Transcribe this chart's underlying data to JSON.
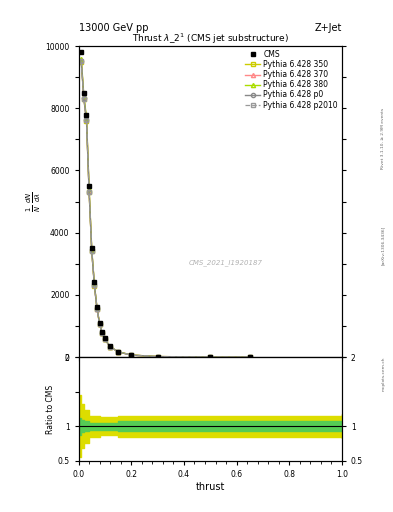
{
  "title": "Thrust $\\lambda\\_2^1$ (CMS jet substructure)",
  "top_left_label": "13000 GeV pp",
  "top_right_label": "Z+Jet",
  "cms_id": "CMS_2021_I1920187",
  "xlabel": "thrust",
  "ylabel": "$\\frac{1}{N}\\frac{dN}{d\\lambda}$",
  "background_color": "#ffffff",
  "main_ylim": [
    0,
    10000
  ],
  "ratio_ylim": [
    0.5,
    2.0
  ],
  "xlim": [
    0.0,
    1.0
  ],
  "cms_color": "#000000",
  "p350_color": "#cccc00",
  "p370_color": "#ff8888",
  "p380_color": "#aadd00",
  "p0_color": "#888888",
  "p2010_color": "#999999",
  "yellow_band_color": "#dddd00",
  "green_band_color": "#55cc55",
  "x_data": [
    0.01,
    0.02,
    0.03,
    0.04,
    0.05,
    0.06,
    0.07,
    0.08,
    0.09,
    0.1,
    0.12,
    0.15,
    0.2,
    0.3,
    0.5,
    0.65
  ],
  "cms_y": [
    9800,
    8500,
    7800,
    5500,
    3500,
    2400,
    1600,
    1100,
    800,
    600,
    350,
    180,
    70,
    18,
    3,
    3
  ],
  "p350_y": [
    9500,
    8300,
    7600,
    5300,
    3400,
    2300,
    1550,
    1050,
    760,
    570,
    330,
    170,
    65,
    17,
    2.8,
    2.8
  ],
  "p370_y": [
    9550,
    8350,
    7650,
    5350,
    3430,
    2320,
    1560,
    1060,
    765,
    575,
    333,
    172,
    66,
    17.2,
    2.85,
    2.85
  ],
  "p380_y": [
    9600,
    8400,
    7700,
    5400,
    3450,
    2340,
    1570,
    1070,
    770,
    580,
    336,
    174,
    67,
    17.5,
    2.9,
    2.9
  ],
  "p0_y": [
    9520,
    8320,
    7620,
    5320,
    3410,
    2310,
    1555,
    1055,
    762,
    572,
    331,
    171,
    65.5,
    17.1,
    2.82,
    2.82
  ],
  "p2010_y": [
    9510,
    8310,
    7610,
    5310,
    3405,
    2305,
    1552,
    1052,
    761,
    571,
    330,
    170.5,
    65.2,
    17.05,
    2.81,
    2.81
  ],
  "ratio_x_lo": [
    0.0,
    0.005,
    0.01,
    0.02,
    0.04,
    0.08,
    0.15,
    1.0
  ],
  "yellow_lo": [
    0.75,
    0.55,
    0.68,
    0.76,
    0.85,
    0.87,
    0.85,
    0.83
  ],
  "yellow_hi": [
    1.25,
    1.45,
    1.32,
    1.24,
    1.15,
    1.13,
    1.15,
    1.17
  ],
  "green_lo": [
    0.9,
    0.88,
    0.91,
    0.93,
    0.95,
    0.95,
    0.93,
    0.93
  ],
  "green_hi": [
    1.1,
    1.12,
    1.09,
    1.07,
    1.05,
    1.05,
    1.07,
    1.07
  ],
  "right_text_1": "Rivet 3.1.10, ≥ 2.9M events",
  "right_text_2": "[arXiv:1306.3436]",
  "right_text_3": "mcplots.cern.ch"
}
